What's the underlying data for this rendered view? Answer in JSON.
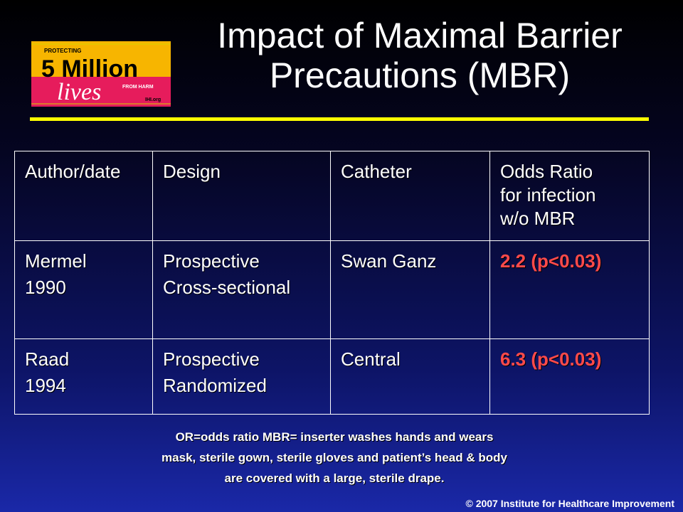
{
  "logo": {
    "top": "PROTECTING",
    "main": "5 Million",
    "lower": "lives",
    "from_harm": "FROM HARM",
    "org": "IHI.org"
  },
  "title": {
    "line1": "Impact of Maximal Barrier",
    "line2": "Precautions (MBR)"
  },
  "table": {
    "headers": [
      "Author/date",
      "Design",
      "Catheter",
      [
        "Odds Ratio",
        "for infection",
        "w/o MBR"
      ]
    ],
    "rows": [
      {
        "author": [
          "Mermel",
          "1990"
        ],
        "design": [
          "Prospective",
          "Cross-sectional"
        ],
        "catheter": "Swan Ganz",
        "odds": "2.2 (p<0.03)"
      },
      {
        "author": [
          "Raad",
          "1994"
        ],
        "design": [
          "Prospective",
          "Randomized"
        ],
        "catheter": "Central",
        "odds": "6.3 (p<0.03)"
      }
    ]
  },
  "footnote": [
    "OR=odds ratio  MBR= inserter washes hands and wears",
    "mask, sterile gown, sterile gloves and patient’s head & body",
    "are covered with a large, sterile drape."
  ],
  "copyright": "© 2007 Institute for Healthcare Improvement",
  "colors": {
    "accent_rule": "#ffff00",
    "odds_text": "#ff4a4a",
    "logo_yellow": "#f7b500",
    "logo_pink": "#e61c5c"
  }
}
